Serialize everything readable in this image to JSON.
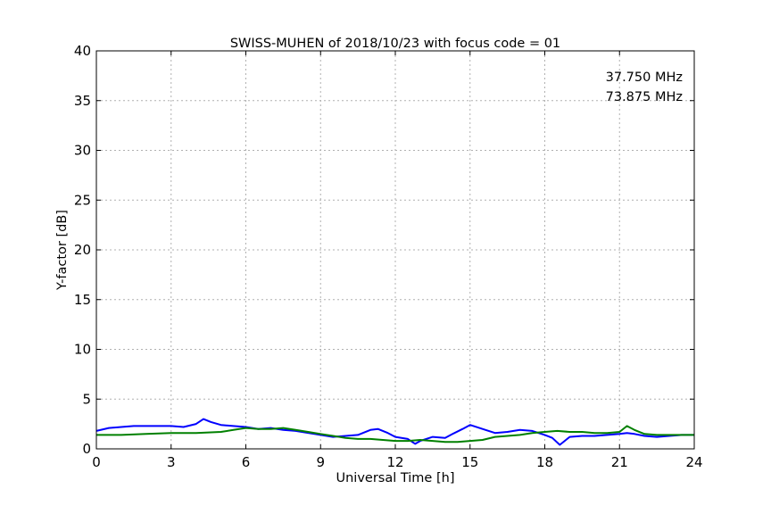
{
  "chart_data": {
    "type": "line",
    "title": "SWISS-MUHEN of 2018/10/23 with focus code = 01",
    "xlabel": "Universal Time [h]",
    "ylabel": "Y-factor [dB]",
    "xlim": [
      0,
      24
    ],
    "ylim": [
      0,
      40
    ],
    "xticks": [
      0,
      3,
      6,
      9,
      12,
      15,
      18,
      21,
      24
    ],
    "yticks": [
      0,
      5,
      10,
      15,
      20,
      25,
      30,
      35,
      40
    ],
    "grid": true,
    "legend_position": "top-right",
    "series": [
      {
        "name": "37.750 MHz",
        "color": "#0000ff",
        "x": [
          0,
          0.5,
          1,
          1.5,
          2,
          2.5,
          3,
          3.5,
          4,
          4.3,
          4.6,
          5,
          5.5,
          6,
          6.5,
          7,
          7.5,
          8,
          8.5,
          9,
          9.5,
          10,
          10.5,
          11,
          11.3,
          11.7,
          12,
          12.5,
          12.8,
          13,
          13.5,
          14,
          14.3,
          14.7,
          15,
          15.5,
          16,
          16.5,
          17,
          17.5,
          18,
          18.3,
          18.6,
          18.8,
          19,
          19.5,
          20,
          20.5,
          21,
          21.3,
          21.6,
          22,
          22.5,
          23,
          23.5,
          24
        ],
        "y": [
          1.8,
          2.1,
          2.2,
          2.3,
          2.3,
          2.3,
          2.3,
          2.2,
          2.5,
          3.0,
          2.7,
          2.4,
          2.3,
          2.2,
          2.0,
          2.1,
          1.9,
          1.8,
          1.6,
          1.4,
          1.2,
          1.3,
          1.4,
          1.9,
          2.0,
          1.6,
          1.2,
          1.0,
          0.5,
          0.8,
          1.2,
          1.1,
          1.5,
          2.0,
          2.4,
          2.0,
          1.6,
          1.7,
          1.9,
          1.8,
          1.4,
          1.1,
          0.4,
          0.8,
          1.2,
          1.3,
          1.3,
          1.4,
          1.5,
          1.6,
          1.5,
          1.3,
          1.2,
          1.3,
          1.4,
          1.4
        ]
      },
      {
        "name": "73.875 MHz",
        "color": "#008000",
        "x": [
          0,
          1,
          2,
          3,
          4,
          5,
          5.5,
          6,
          6.5,
          7,
          7.5,
          8,
          8.5,
          9,
          9.5,
          10,
          10.5,
          11,
          11.5,
          12,
          12.5,
          13,
          13.5,
          14,
          14.5,
          15,
          15.5,
          16,
          16.5,
          17,
          17.5,
          18,
          18.5,
          19,
          19.5,
          20,
          20.5,
          21,
          21.3,
          21.6,
          22,
          22.5,
          23,
          23.5,
          24
        ],
        "y": [
          1.4,
          1.4,
          1.5,
          1.6,
          1.6,
          1.7,
          1.9,
          2.1,
          2.0,
          2.0,
          2.1,
          1.9,
          1.7,
          1.5,
          1.3,
          1.1,
          1.0,
          1.0,
          0.9,
          0.8,
          0.8,
          0.9,
          0.8,
          0.7,
          0.7,
          0.8,
          0.9,
          1.2,
          1.3,
          1.4,
          1.6,
          1.7,
          1.8,
          1.7,
          1.7,
          1.6,
          1.6,
          1.7,
          2.3,
          1.9,
          1.5,
          1.4,
          1.4,
          1.4,
          1.4
        ]
      }
    ]
  }
}
